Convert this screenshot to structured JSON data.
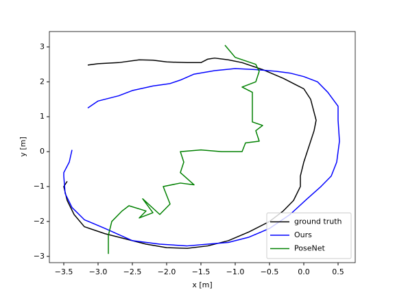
{
  "chart_data": {
    "type": "line",
    "xlabel": "x [m]",
    "ylabel": "y [m]",
    "xlim": [
      -3.71,
      0.75
    ],
    "ylim": [
      -3.18,
      3.44
    ],
    "xticks": [
      {
        "value": -3.5,
        "label": "−3.5"
      },
      {
        "value": -3.0,
        "label": "−3.0"
      },
      {
        "value": -2.5,
        "label": "−2.5"
      },
      {
        "value": -2.0,
        "label": "−2.0"
      },
      {
        "value": -1.5,
        "label": "−1.5"
      },
      {
        "value": -1.0,
        "label": "−1.0"
      },
      {
        "value": -0.5,
        "label": "−0.5"
      },
      {
        "value": 0,
        "label": "0.0"
      },
      0.5
    ],
    "yticks": [
      {
        "value": -3,
        "label": "−3"
      },
      {
        "value": -2,
        "label": "−2"
      },
      {
        "value": -1,
        "label": "−1"
      },
      0,
      1,
      2,
      3
    ],
    "legend": "lower right",
    "series": [
      {
        "name": "ground truth",
        "color": "#000000",
        "x": [
          -3.15,
          -3.0,
          -2.7,
          -2.4,
          -2.2,
          -2.0,
          -1.7,
          -1.5,
          -1.4,
          -1.3,
          -1.1,
          -0.9,
          -0.6,
          -0.3,
          -0.1,
          0.0,
          0.1,
          0.18,
          0.15,
          0.1,
          0.05,
          0.0,
          -0.05,
          -0.05,
          -0.15,
          -0.3,
          -0.5,
          -0.8,
          -1.1,
          -1.4,
          -1.7,
          -2.0,
          -2.3,
          -2.6,
          -2.9,
          -3.2,
          -3.35,
          -3.45,
          -3.5,
          -3.45
        ],
        "values": [
          2.48,
          2.52,
          2.55,
          2.63,
          2.62,
          2.57,
          2.55,
          2.55,
          2.65,
          2.68,
          2.63,
          2.55,
          2.35,
          2.1,
          1.9,
          1.8,
          1.5,
          0.9,
          0.6,
          0.3,
          0,
          -0.3,
          -0.7,
          -1.0,
          -1.4,
          -1.7,
          -2.0,
          -2.3,
          -2.55,
          -2.7,
          -2.77,
          -2.75,
          -2.65,
          -2.5,
          -2.35,
          -2.15,
          -1.8,
          -1.4,
          -1.0,
          -0.85
        ]
      },
      {
        "name": "Ours",
        "color": "#0000ff",
        "x": [
          -3.15,
          -3.0,
          -2.7,
          -2.5,
          -2.2,
          -1.95,
          -1.8,
          -1.6,
          -1.3,
          -1.0,
          -0.7,
          -0.4,
          -0.2,
          0.0,
          0.2,
          0.35,
          0.5,
          0.5,
          0.52,
          0.48,
          0.4,
          0.25,
          0.05,
          -0.2,
          -0.5,
          -0.8,
          -1.1,
          -1.4,
          -1.7,
          -2.1,
          -2.5,
          -2.9,
          -3.2,
          -3.38,
          -3.48,
          -3.5,
          -3.5,
          -3.42,
          -3.38
        ],
        "values": [
          1.25,
          1.45,
          1.6,
          1.75,
          1.88,
          1.95,
          2.05,
          2.22,
          2.32,
          2.38,
          2.35,
          2.3,
          2.25,
          2.15,
          2.0,
          1.7,
          1.3,
          0.9,
          0.3,
          -0.3,
          -0.7,
          -1.0,
          -1.35,
          -1.8,
          -2.2,
          -2.45,
          -2.6,
          -2.65,
          -2.7,
          -2.65,
          -2.55,
          -2.2,
          -1.95,
          -1.6,
          -1.2,
          -0.7,
          -0.6,
          -0.3,
          0.05
        ]
      },
      {
        "name": "PoseNet",
        "color": "#008000",
        "x": [
          -2.85,
          -2.85,
          -2.8,
          -2.65,
          -2.55,
          -2.3,
          -2.4,
          -2.2,
          -2.35,
          -2.1,
          -1.95,
          -2.05,
          -1.8,
          -1.6,
          -1.8,
          -1.75,
          -1.8,
          -1.5,
          -1.2,
          -0.9,
          -0.85,
          -0.65,
          -0.7,
          -0.6,
          -0.75,
          -0.75,
          -0.75,
          -0.9,
          -0.7,
          -0.65,
          -0.7,
          -1.0,
          -1.15
        ],
        "values": [
          -2.93,
          -2.4,
          -2.0,
          -1.7,
          -1.55,
          -1.7,
          -1.9,
          -1.75,
          -1.35,
          -1.8,
          -1.5,
          -1.0,
          -0.9,
          -0.95,
          -0.6,
          -0.3,
          0.0,
          0.05,
          0.0,
          0.0,
          0.25,
          0.3,
          0.6,
          0.75,
          0.85,
          1.3,
          1.7,
          1.85,
          2.0,
          2.3,
          2.5,
          2.7,
          3.05
        ]
      }
    ]
  }
}
